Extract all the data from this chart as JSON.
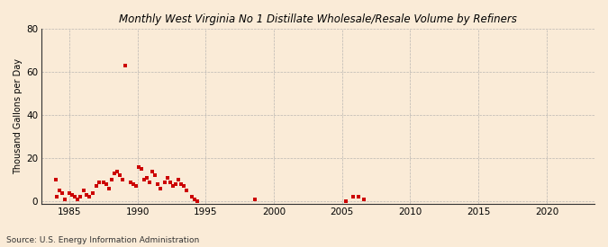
{
  "title": "Monthly West Virginia No 1 Distillate Wholesale/Resale Volume by Refiners",
  "ylabel": "Thousand Gallons per Day",
  "source": "Source: U.S. Energy Information Administration",
  "background_color": "#faebd7",
  "marker_color": "#cc0000",
  "xlim": [
    1983.0,
    2023.5
  ],
  "ylim": [
    -1,
    80
  ],
  "yticks": [
    0,
    20,
    40,
    60,
    80
  ],
  "xticks": [
    1985,
    1990,
    1995,
    2000,
    2005,
    2010,
    2015,
    2020
  ],
  "data_x": [
    1984.0,
    1984.1,
    1984.3,
    1984.5,
    1984.7,
    1985.0,
    1985.2,
    1985.4,
    1985.6,
    1985.8,
    1986.1,
    1986.3,
    1986.5,
    1986.7,
    1987.0,
    1987.2,
    1987.5,
    1987.7,
    1987.9,
    1988.1,
    1988.3,
    1988.5,
    1988.7,
    1988.9,
    1989.1,
    1989.5,
    1989.7,
    1989.9,
    1990.1,
    1990.3,
    1990.5,
    1990.7,
    1990.9,
    1991.1,
    1991.3,
    1991.5,
    1991.7,
    1992.0,
    1992.2,
    1992.4,
    1992.6,
    1992.8,
    1993.0,
    1993.2,
    1993.4,
    1993.6,
    1994.0,
    1994.2,
    1994.4,
    1998.6,
    2005.3,
    2005.8,
    2006.2,
    2006.6
  ],
  "data_y": [
    10,
    2,
    5,
    4,
    1,
    4,
    3,
    2,
    1,
    2,
    5,
    3,
    2,
    4,
    7,
    9,
    9,
    8,
    6,
    10,
    13,
    14,
    12,
    10,
    63,
    9,
    8,
    7,
    16,
    15,
    10,
    11,
    9,
    14,
    12,
    8,
    6,
    9,
    11,
    9,
    7,
    8,
    10,
    8,
    7,
    5,
    2,
    1,
    0,
    1,
    0,
    2,
    2,
    1
  ]
}
